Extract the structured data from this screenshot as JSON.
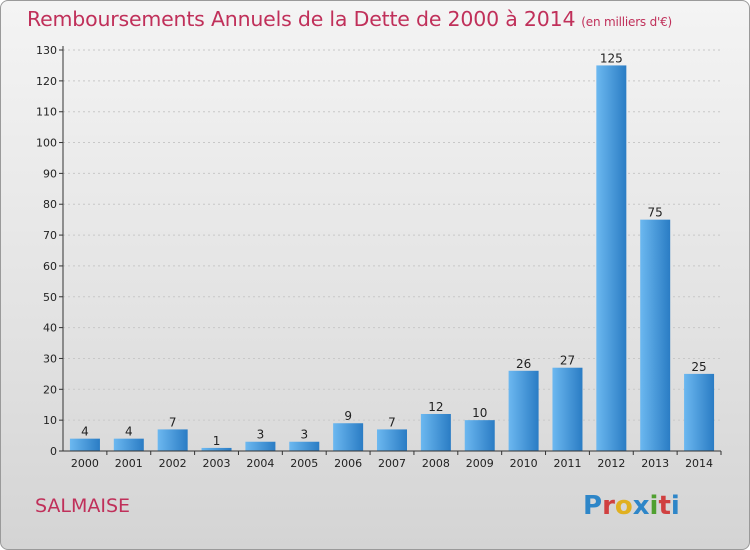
{
  "title": "Remboursements Annuels de la Dette de 2000 à 2014",
  "subtitle": "(en milliers d'€)",
  "place": "SALMAISE",
  "logo": {
    "text": "Proxiti",
    "colors": [
      "#2e86c8",
      "#d04040",
      "#e0b020",
      "#2e86c8",
      "#50a030",
      "#d04040",
      "#2e86c8"
    ]
  },
  "colors": {
    "bar_light": "#6cb8f0",
    "bar_dark": "#2a7cc4",
    "axis": "#333333",
    "grid": "#c8c8c8"
  },
  "chart_data": {
    "type": "bar",
    "title": "Remboursements Annuels de la Dette de 2000 à 2014",
    "subtitle": "(en milliers d'€)",
    "categories": [
      "2000",
      "2001",
      "2002",
      "2003",
      "2004",
      "2005",
      "2006",
      "2007",
      "2008",
      "2009",
      "2010",
      "2011",
      "2012",
      "2013",
      "2014"
    ],
    "values": [
      4,
      4,
      7,
      1,
      3,
      3,
      9,
      7,
      12,
      10,
      26,
      27,
      125,
      75,
      25
    ],
    "value_labels": [
      "4",
      "4",
      "7",
      "1",
      "3",
      "3",
      "9",
      "7",
      "12",
      "10",
      "26",
      "27",
      "125",
      "75",
      "25"
    ],
    "y_ticks": [
      "0",
      "10",
      "20",
      "30",
      "40",
      "50",
      "60",
      "70",
      "80",
      "90",
      "100",
      "110",
      "120",
      "130"
    ],
    "xlabel": "",
    "ylabel": "",
    "ylim": [
      0,
      130
    ],
    "grid": true,
    "legend": "none"
  }
}
